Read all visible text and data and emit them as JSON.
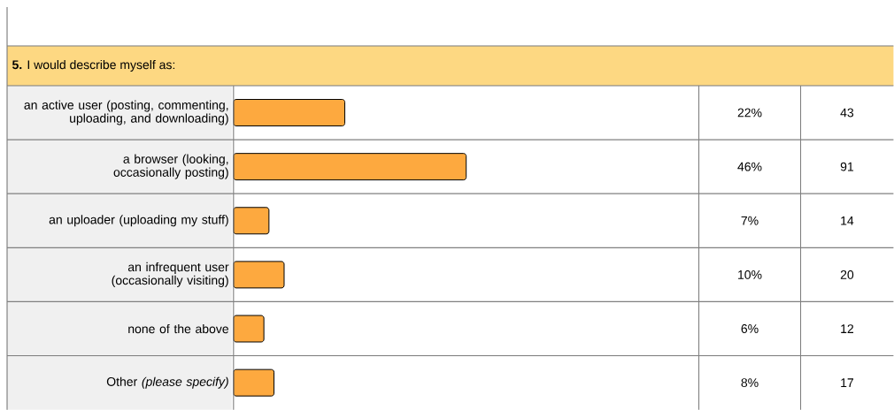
{
  "chart_data": {
    "type": "bar",
    "orientation": "horizontal",
    "title": "**5.** I would describe myself as:",
    "categories": [
      "an active user (posting, commenting, uploading, and downloading)",
      "a browser (looking, occasionally posting)",
      "an uploader (uploading my stuff)",
      "an infrequent user (occasionally visiting)",
      "none of the above",
      "Other *(please specify)*"
    ],
    "values": [
      22,
      46,
      7,
      10,
      6,
      8
    ],
    "color": "#fda93f",
    "value_labels": [
      "22%",
      "46%",
      "7%",
      "10%",
      "6%",
      "8%"
    ],
    "annotations": [
      "43",
      "91",
      "14",
      "20",
      "12",
      "17"
    ]
  }
}
